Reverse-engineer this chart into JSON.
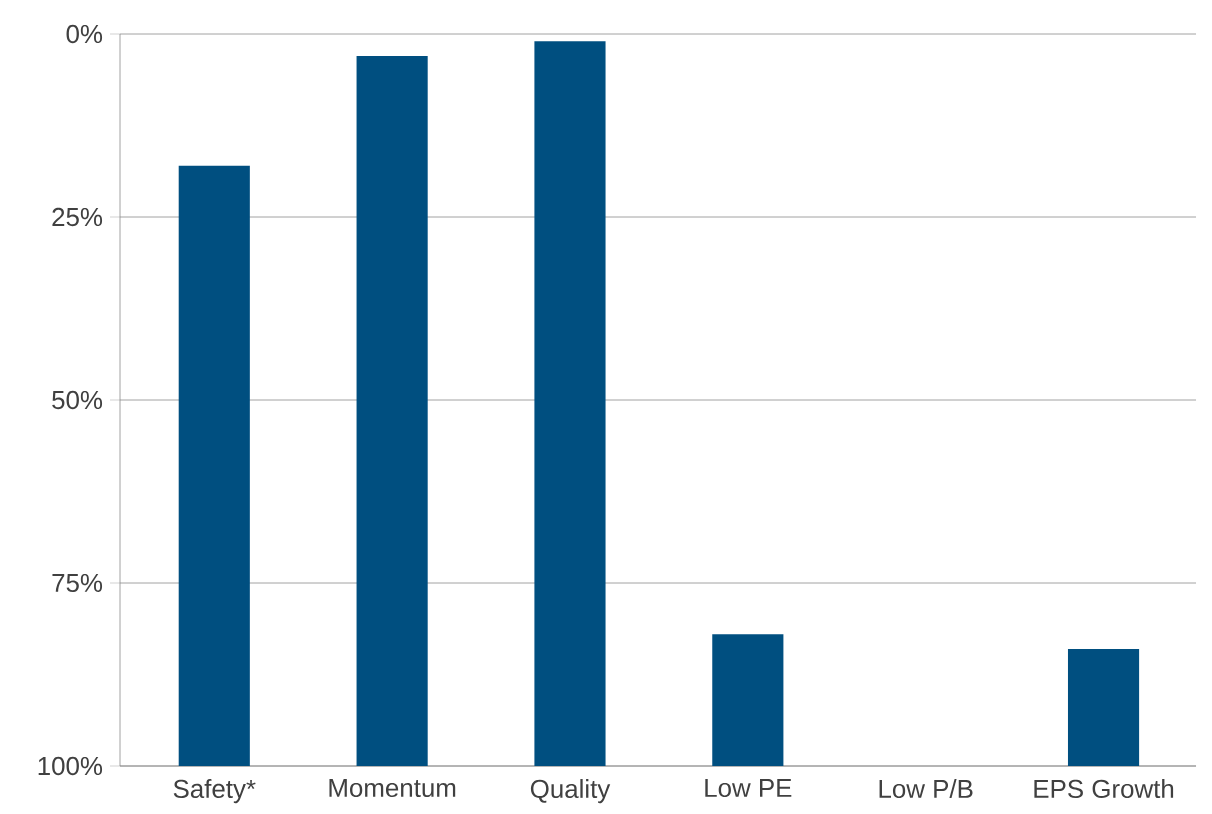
{
  "chart_data": {
    "type": "bar",
    "categories": [
      "Safety*",
      "Momentum",
      "Quality",
      "Low PE",
      "Low P/B",
      "EPS Growth"
    ],
    "base": [
      100,
      100,
      100,
      100,
      null,
      100
    ],
    "values": [
      -82,
      -97,
      -99,
      -18,
      null,
      -16
    ],
    "color": "#004f80",
    "ylim": [
      100,
      0
    ],
    "yticks": [
      {
        "value": 0,
        "label": "0%"
      },
      {
        "value": 25,
        "label": "25%"
      },
      {
        "value": 50,
        "label": "50%"
      },
      {
        "value": 75,
        "label": "75%"
      },
      {
        "value": 100,
        "label": "100%"
      }
    ],
    "grid": "y"
  }
}
